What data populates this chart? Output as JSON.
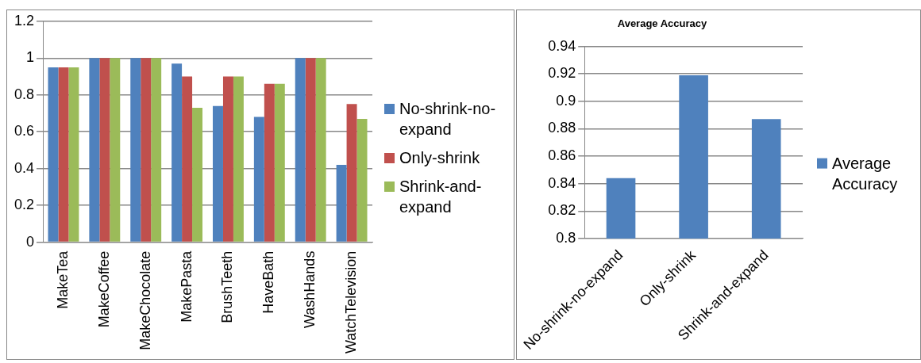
{
  "chart_data": [
    {
      "type": "bar",
      "categories": [
        "MakeTea",
        "MakeCoffee",
        "MakeChocolate",
        "MakePasta",
        "BrushTeeth",
        "HaveBath",
        "WashHands",
        "WatchTelevision"
      ],
      "series": [
        {
          "name": "No-shrink-no-expand",
          "color": "#4f81bd",
          "values": [
            0.95,
            1,
            1,
            0.97,
            0.74,
            0.68,
            1,
            0.42
          ]
        },
        {
          "name": "Only-shrink",
          "color": "#c0504d",
          "values": [
            0.95,
            1,
            1,
            0.9,
            0.9,
            0.86,
            1,
            0.75
          ]
        },
        {
          "name": "Shrink-and-expand",
          "color": "#9bbb59",
          "values": [
            0.95,
            1,
            1,
            0.73,
            0.9,
            0.86,
            1,
            0.67
          ]
        }
      ],
      "ylim": [
        0,
        1.2
      ],
      "yticks": [
        0,
        0.2,
        0.4,
        0.6,
        0.8,
        1,
        1.2
      ],
      "grid": "y",
      "legend": "right"
    },
    {
      "type": "bar",
      "title": "Average Accuracy",
      "categories": [
        "No-shrink-no-expand",
        "Only-shrink",
        "Shrink-and-expand"
      ],
      "series": [
        {
          "name": "Average Accuracy",
          "color": "#4f81bd",
          "values": [
            0.844,
            0.919,
            0.887
          ]
        }
      ],
      "ylim": [
        0.8,
        0.94
      ],
      "yticks": [
        0.8,
        0.82,
        0.84,
        0.86,
        0.88,
        0.9,
        0.92,
        0.94
      ],
      "grid": "y",
      "legend": "right"
    }
  ]
}
